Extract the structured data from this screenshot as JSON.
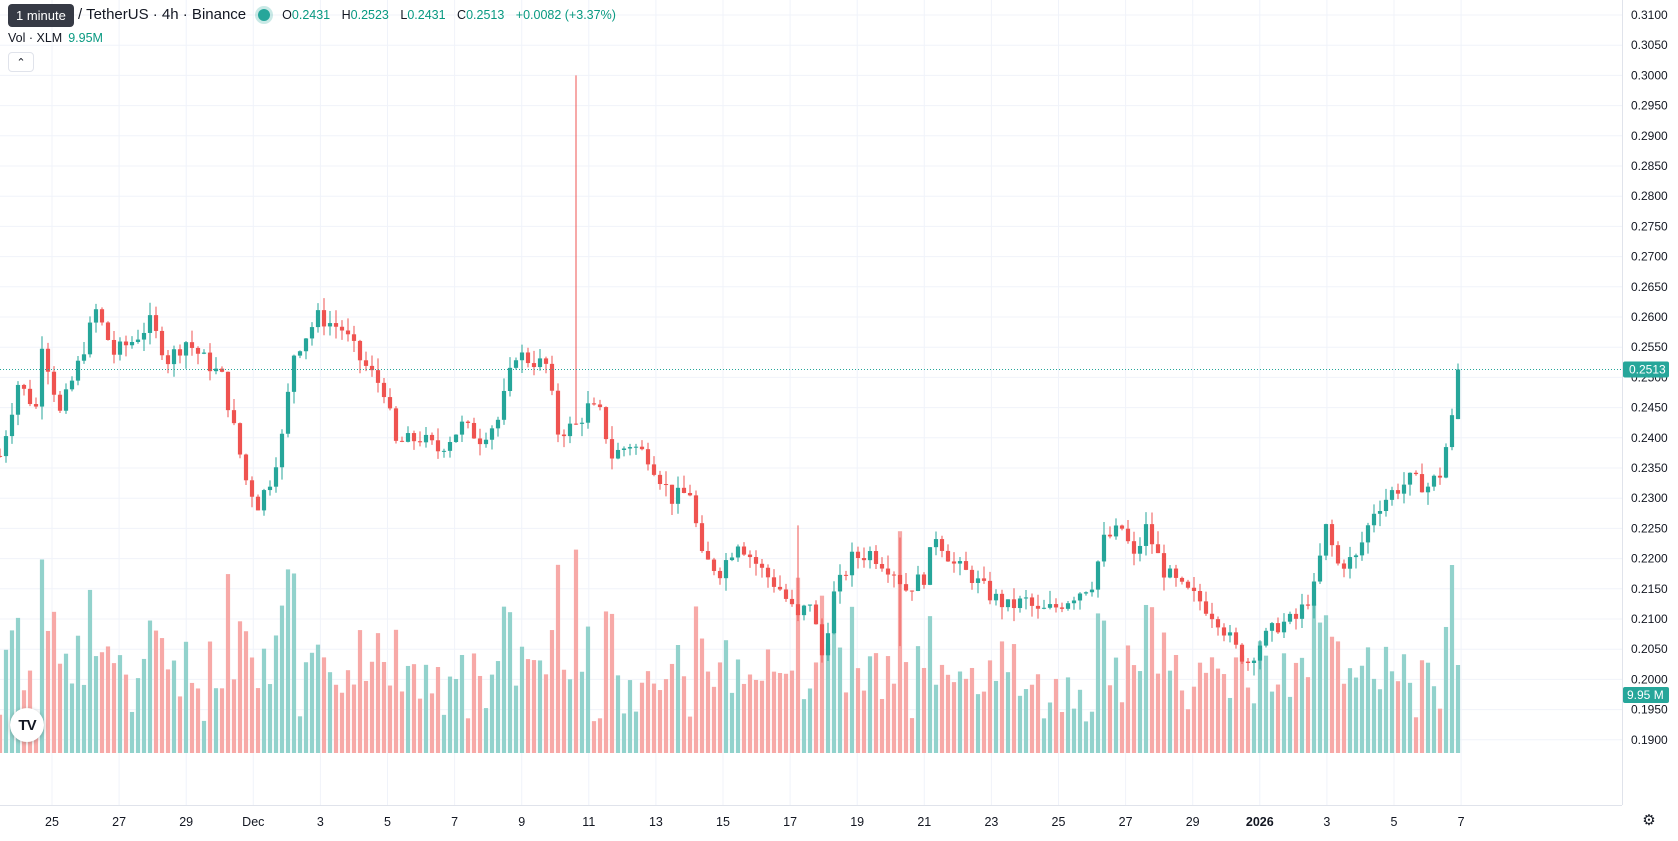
{
  "tooltip": {
    "time": "1 minute"
  },
  "legend": {
    "pair": "/ TetherUS · 4h · Binance",
    "open_label": "O",
    "open": "0.2431",
    "high_label": "H",
    "high": "0.2523",
    "low_label": "L",
    "low": "0.2431",
    "close_label": "C",
    "close": "0.2513",
    "change": "+0.0082 (+3.37%)"
  },
  "volume": {
    "label": "Vol · XLM",
    "value": "9.95M"
  },
  "price_badge": "0.2513",
  "volume_badge": "9.95 M",
  "logo_text": "TV",
  "colors": {
    "up": "#26a69a",
    "down": "#ef5350",
    "up_vol": "#92d2cc",
    "down_vol": "#f7a9a7",
    "grid": "#f0f3fa"
  },
  "icons": {
    "collapse": "chevron-up-icon",
    "settings": "gear-icon",
    "logo": "tradingview-logo"
  },
  "chart_data": {
    "type": "candlestick",
    "interval": "4h",
    "y_ticks": [
      "0.3100",
      "0.3050",
      "0.3000",
      "0.2950",
      "0.2900",
      "0.2850",
      "0.2800",
      "0.2750",
      "0.2700",
      "0.2650",
      "0.2600",
      "0.2550",
      "0.2500",
      "0.2450",
      "0.2400",
      "0.2350",
      "0.2300",
      "0.2250",
      "0.2200",
      "0.2150",
      "0.2100",
      "0.2050",
      "0.2000",
      "0.1950",
      "0.1900"
    ],
    "ylim": [
      0.1875,
      0.311
    ],
    "x_ticks": [
      {
        "label": "25",
        "bold": false
      },
      {
        "label": "27",
        "bold": false
      },
      {
        "label": "29",
        "bold": false
      },
      {
        "label": "Dec",
        "bold": false
      },
      {
        "label": "3",
        "bold": false
      },
      {
        "label": "5",
        "bold": false
      },
      {
        "label": "7",
        "bold": false
      },
      {
        "label": "9",
        "bold": false
      },
      {
        "label": "11",
        "bold": false
      },
      {
        "label": "13",
        "bold": false
      },
      {
        "label": "15",
        "bold": false
      },
      {
        "label": "17",
        "bold": false
      },
      {
        "label": "19",
        "bold": false
      },
      {
        "label": "21",
        "bold": false
      },
      {
        "label": "23",
        "bold": false
      },
      {
        "label": "25",
        "bold": false
      },
      {
        "label": "27",
        "bold": false
      },
      {
        "label": "29",
        "bold": false
      },
      {
        "label": "2026",
        "bold": true
      },
      {
        "label": "3",
        "bold": false
      },
      {
        "label": "5",
        "bold": false
      },
      {
        "label": "7",
        "bold": false
      }
    ],
    "last_close": 0.2513,
    "anchors": [
      [
        0,
        0.237
      ],
      [
        3,
        0.249
      ],
      [
        6,
        0.245
      ],
      [
        7,
        0.256
      ],
      [
        10,
        0.244
      ],
      [
        13,
        0.252
      ],
      [
        16,
        0.261
      ],
      [
        19,
        0.254
      ],
      [
        22,
        0.256
      ],
      [
        25,
        0.259
      ],
      [
        28,
        0.253
      ],
      [
        31,
        0.256
      ],
      [
        34,
        0.253
      ],
      [
        37,
        0.25
      ],
      [
        41,
        0.233
      ],
      [
        43,
        0.229
      ],
      [
        45,
        0.233
      ],
      [
        47,
        0.24
      ],
      [
        49,
        0.254
      ],
      [
        53,
        0.26
      ],
      [
        57,
        0.258
      ],
      [
        60,
        0.253
      ],
      [
        64,
        0.248
      ],
      [
        66,
        0.239
      ],
      [
        70,
        0.24
      ],
      [
        73,
        0.238
      ],
      [
        77,
        0.242
      ],
      [
        80,
        0.24
      ],
      [
        83,
        0.243
      ],
      [
        86,
        0.254
      ],
      [
        88,
        0.253
      ],
      [
        91,
        0.252
      ],
      [
        93,
        0.241
      ],
      [
        96,
        0.242
      ],
      [
        98,
        0.245
      ],
      [
        100,
        0.244
      ],
      [
        102,
        0.237
      ],
      [
        105,
        0.239
      ],
      [
        108,
        0.237
      ],
      [
        112,
        0.23
      ],
      [
        115,
        0.231
      ],
      [
        117,
        0.22
      ],
      [
        120,
        0.218
      ],
      [
        123,
        0.223
      ],
      [
        127,
        0.218
      ],
      [
        130,
        0.215
      ],
      [
        133,
        0.21
      ],
      [
        135,
        0.213
      ],
      [
        137,
        0.204
      ],
      [
        139,
        0.214
      ],
      [
        142,
        0.22
      ],
      [
        145,
        0.221
      ],
      [
        149,
        0.218
      ],
      [
        151,
        0.215
      ],
      [
        154,
        0.217
      ],
      [
        156,
        0.224
      ],
      [
        159,
        0.219
      ],
      [
        162,
        0.217
      ],
      [
        165,
        0.214
      ],
      [
        168,
        0.212
      ],
      [
        171,
        0.213
      ],
      [
        173,
        0.211
      ],
      [
        176,
        0.212
      ],
      [
        179,
        0.214
      ],
      [
        182,
        0.216
      ],
      [
        184,
        0.223
      ],
      [
        187,
        0.225
      ],
      [
        189,
        0.22
      ],
      [
        191,
        0.225
      ],
      [
        194,
        0.218
      ],
      [
        197,
        0.215
      ],
      [
        200,
        0.213
      ],
      [
        203,
        0.21
      ],
      [
        206,
        0.205
      ],
      [
        208,
        0.203
      ],
      [
        210,
        0.206
      ],
      [
        213,
        0.209
      ],
      [
        216,
        0.21
      ],
      [
        219,
        0.215
      ],
      [
        221,
        0.225
      ],
      [
        223,
        0.219
      ],
      [
        226,
        0.22
      ],
      [
        229,
        0.228
      ],
      [
        232,
        0.231
      ],
      [
        235,
        0.233
      ],
      [
        238,
        0.232
      ],
      [
        240,
        0.234
      ],
      [
        242,
        0.243
      ],
      [
        243,
        0.2513
      ]
    ]
  }
}
